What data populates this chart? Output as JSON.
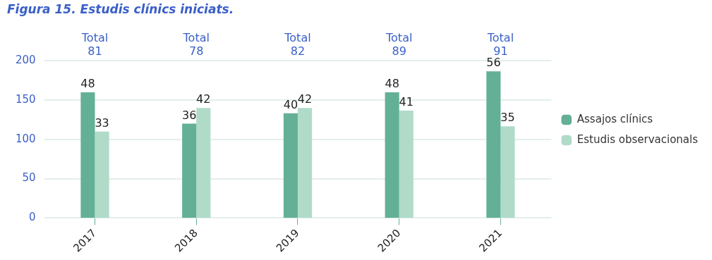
{
  "chart_data": {
    "type": "bar",
    "title": "Figura 15. Estudis clínics iniciats.",
    "categories": [
      "2017",
      "2018",
      "2019",
      "2020",
      "2021"
    ],
    "series": [
      {
        "name": "Assajos clínics",
        "color": "#63b096",
        "values": [
          48,
          36,
          40,
          48,
          56
        ],
        "axis": "y2"
      },
      {
        "name": "Estudis observacionals",
        "color": "#b0dbc9",
        "values": [
          33,
          42,
          42,
          41,
          35
        ],
        "axis": "y2"
      }
    ],
    "ylim": [
      0,
      200
    ],
    "yticks": [
      0,
      50,
      100,
      150,
      200
    ],
    "y2lim": [
      0,
      60
    ],
    "annotations": [
      "Total\n81",
      "Total\n78",
      "Total\n82",
      "Total\n89",
      "Total\n91"
    ],
    "data_labels": true,
    "grid": "y",
    "legend": "right"
  }
}
